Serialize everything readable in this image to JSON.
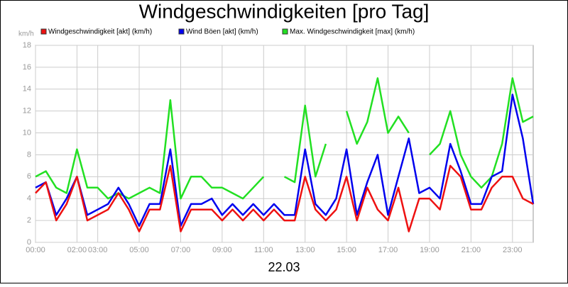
{
  "chart_data": {
    "type": "line",
    "title": "Windgeschwindigkeiten [pro Tag]",
    "unit": "km/h",
    "date": "22.03",
    "x": [
      0,
      0.5,
      1,
      1.5,
      2,
      2.5,
      3,
      3.5,
      4,
      4.5,
      5,
      5.5,
      6,
      6.5,
      7,
      7.5,
      8,
      8.5,
      9,
      9.5,
      10,
      10.5,
      11,
      11.5,
      12,
      12.5,
      13,
      13.5,
      14,
      14.5,
      15,
      15.5,
      16,
      16.5,
      17,
      17.5,
      18,
      18.5,
      19,
      19.5,
      20,
      20.5,
      21,
      21.5,
      22,
      22.5,
      23,
      23.5,
      24
    ],
    "xlim": [
      0,
      24
    ],
    "xticks": [
      {
        "value": 0,
        "label": "00:00"
      },
      {
        "value": 2,
        "label": "02:00"
      },
      {
        "value": 3,
        "label": "03:00"
      },
      {
        "value": 5,
        "label": "05:00"
      },
      {
        "value": 7,
        "label": "07:00"
      },
      {
        "value": 9,
        "label": "09:00"
      },
      {
        "value": 11,
        "label": "11:00"
      },
      {
        "value": 13,
        "label": "13:00"
      },
      {
        "value": 15,
        "label": "15:00"
      },
      {
        "value": 17,
        "label": "17:00"
      },
      {
        "value": 19,
        "label": "19:00"
      },
      {
        "value": 21,
        "label": "21:00"
      },
      {
        "value": 23,
        "label": "23:00"
      }
    ],
    "ylim": [
      0,
      18
    ],
    "yticks": [
      0,
      2,
      4,
      6,
      8,
      10,
      12,
      14,
      16,
      18
    ],
    "grid": true,
    "series": [
      {
        "name": "Windgeschwindigkeit [akt] (km/h)",
        "color": "#ee1111",
        "values": [
          4.5,
          5.5,
          2,
          3.5,
          6,
          2,
          2.5,
          3,
          4.5,
          3,
          1,
          3,
          3,
          7,
          1,
          3,
          3,
          3,
          2,
          3,
          2,
          3,
          2,
          3,
          2,
          2,
          6,
          3,
          2,
          3,
          6,
          2,
          5,
          3,
          2,
          5,
          1,
          4,
          4,
          3,
          7,
          6,
          3,
          3,
          5,
          6,
          6,
          4,
          3.5
        ]
      },
      {
        "name": "Wind Böen [akt] (km/h)",
        "color": "#0000ee",
        "values": [
          5,
          5.5,
          2.5,
          4,
          6,
          2.5,
          3,
          3.5,
          5,
          3.5,
          1.5,
          3.5,
          3.5,
          8.5,
          1.5,
          3.5,
          3.5,
          4,
          2.5,
          3.5,
          2.5,
          3.5,
          2.5,
          3.5,
          2.5,
          2.5,
          8.5,
          3.5,
          2.5,
          4,
          8.5,
          2.5,
          5.5,
          8,
          2.5,
          6,
          9.5,
          4.5,
          5,
          4,
          9,
          6.5,
          3.5,
          3.5,
          6,
          6.5,
          13.5,
          9.5,
          3.5
        ]
      },
      {
        "name": "Max. Windgeschwindigkeit [max] (km/h)",
        "color": "#22e022",
        "values": [
          6,
          6.5,
          5,
          4.5,
          8.5,
          5,
          5,
          4,
          4.5,
          4,
          4.5,
          5,
          4.5,
          13,
          4,
          6,
          6,
          5,
          5,
          4.5,
          4,
          5,
          6,
          null,
          6,
          5.5,
          12.5,
          6,
          9,
          null,
          12,
          9,
          11,
          15,
          10,
          11.5,
          10,
          null,
          8,
          9,
          12,
          8,
          6,
          5,
          6,
          9,
          15,
          11,
          11.5
        ]
      }
    ]
  }
}
